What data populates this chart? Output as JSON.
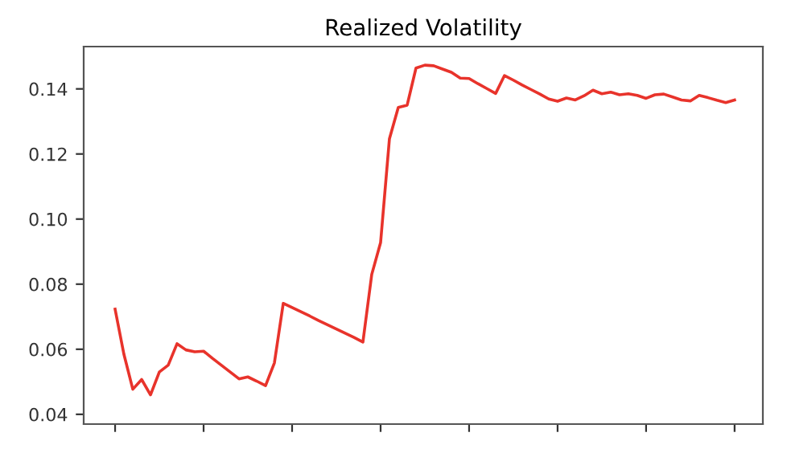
{
  "chart_data": {
    "type": "line",
    "title": "Realized Volatility",
    "categories": [
      null,
      null,
      null,
      null,
      null,
      null,
      null,
      null,
      null,
      null,
      null,
      null,
      null,
      null,
      null,
      null,
      null,
      null,
      null,
      null,
      null,
      null,
      null,
      null,
      null,
      null,
      null,
      null,
      null,
      null,
      null,
      null,
      null,
      null,
      null,
      null,
      null,
      null,
      null,
      null,
      null,
      null,
      null,
      null,
      null,
      null,
      null,
      null,
      null,
      null,
      null,
      null,
      null,
      null,
      null,
      null,
      null,
      null,
      null,
      null,
      null,
      null,
      null,
      null,
      null,
      null,
      null,
      null,
      null,
      null,
      null
    ],
    "series": [
      {
        "color": "#e8332b",
        "values": [
          0.0723,
          0.0584,
          0.0477,
          0.0507,
          0.046,
          0.053,
          0.0551,
          0.0617,
          0.0598,
          0.0592,
          0.0594,
          0.0572,
          0.0551,
          0.053,
          0.0509,
          0.0515,
          0.0502,
          0.0488,
          0.0558,
          0.0741,
          0.0728,
          0.0715,
          0.0702,
          0.0688,
          0.0675,
          0.0662,
          0.0649,
          0.0636,
          0.0622,
          0.083,
          0.0928,
          0.1247,
          0.1343,
          0.135,
          0.1464,
          0.1473,
          0.1471,
          0.1461,
          0.1451,
          0.1433,
          0.1432,
          0.1416,
          0.1401,
          0.1386,
          0.1441,
          0.1427,
          0.1412,
          0.1398,
          0.1384,
          0.1369,
          0.1362,
          0.1372,
          0.1366,
          0.1379,
          0.1396,
          0.1385,
          0.139,
          0.1382,
          0.1385,
          0.138,
          0.1371,
          0.1382,
          0.1384,
          0.1375,
          0.1366,
          0.1363,
          0.138,
          0.1373,
          0.1365,
          0.1358,
          0.1366
        ]
      }
    ],
    "ylim": [
      0.037,
      0.153
    ],
    "yticks": [
      {
        "value": 0.04,
        "label": "0.04"
      },
      {
        "value": 0.06,
        "label": "0.06"
      },
      {
        "value": 0.08,
        "label": "0.08"
      },
      {
        "value": 0.1,
        "label": "0.10"
      },
      {
        "value": 0.12,
        "label": "0.12"
      },
      {
        "value": 0.14,
        "label": "0.14"
      }
    ],
    "tick_labels": "y"
  }
}
